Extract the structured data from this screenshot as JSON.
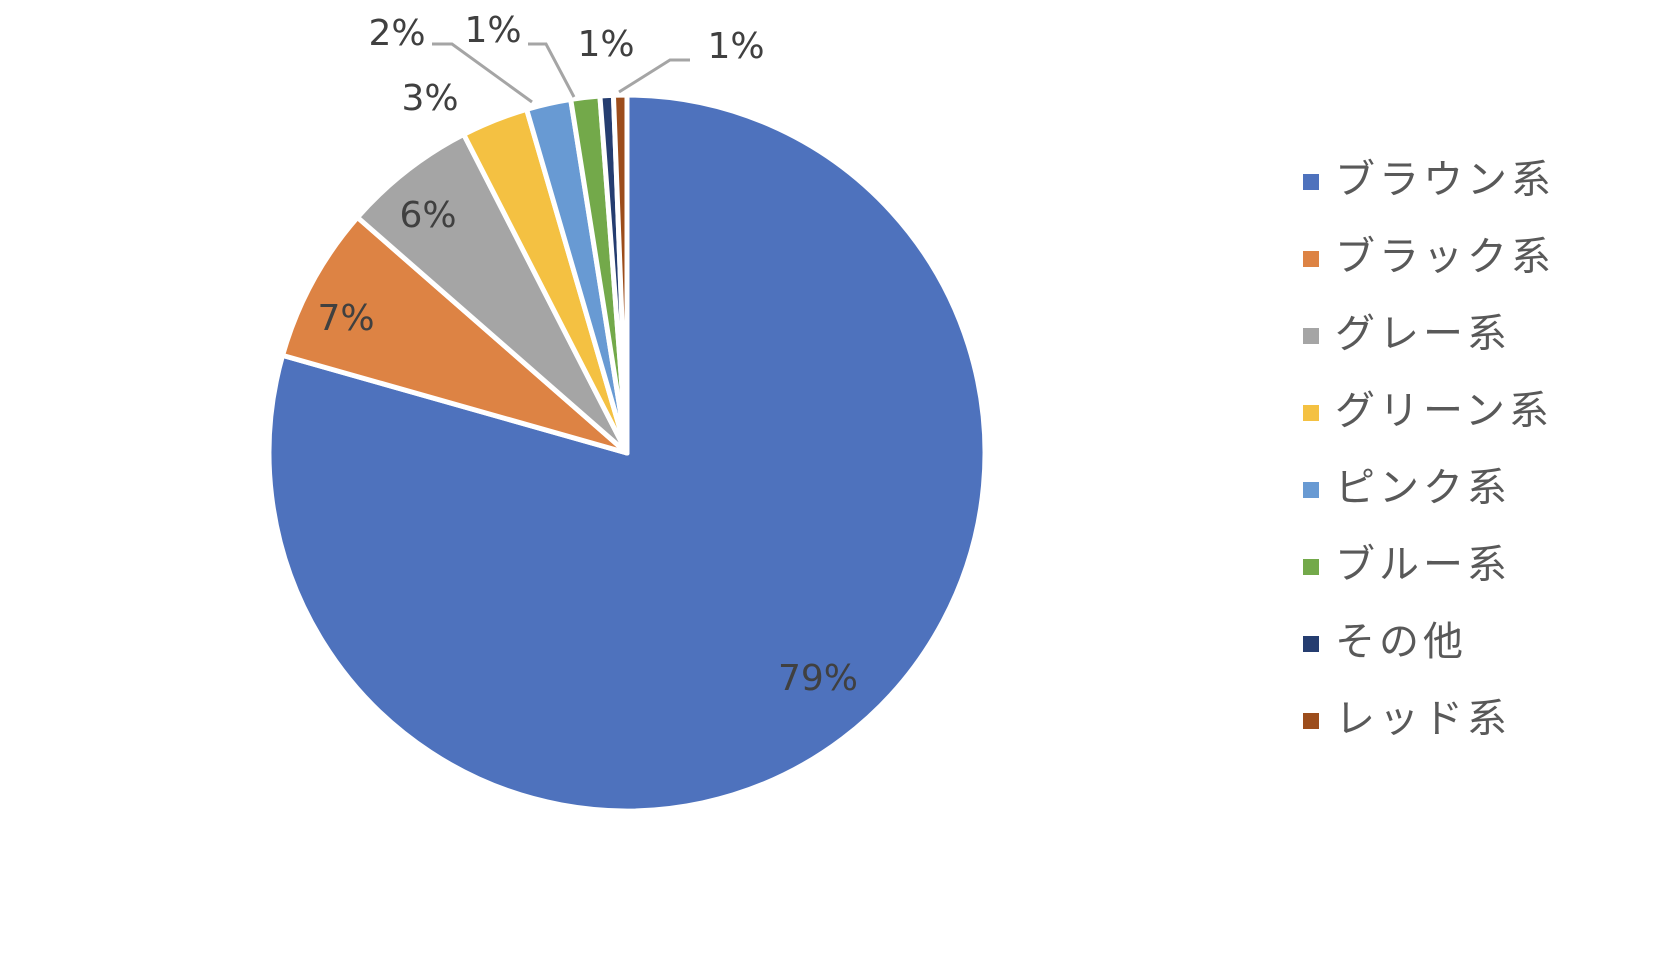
{
  "chart_data": {
    "type": "pie",
    "title": "",
    "start_angle": "12 o'clock",
    "direction": "clockwise",
    "legend_position": "right",
    "slices": [
      {
        "name": "ブラウン系",
        "value": 79,
        "label": "79%",
        "color": "#4E72BD"
      },
      {
        "name": "ブラック系",
        "value": 7,
        "label": "7%",
        "color": "#DD8344"
      },
      {
        "name": "グレー系",
        "value": 6,
        "label": "6%",
        "color": "#A5A5A5"
      },
      {
        "name": "グリーン系",
        "value": 3,
        "label": "3%",
        "color": "#F4C142"
      },
      {
        "name": "ピンク系",
        "value": 2,
        "label": "2%",
        "color": "#689AD3"
      },
      {
        "name": "ブルー系",
        "value": 1.3,
        "label": "1%",
        "color": "#73A94A"
      },
      {
        "name": "その他",
        "value": 0.6,
        "label": "1%",
        "color": "#253D70"
      },
      {
        "name": "レッド系",
        "value": 0.6,
        "label": "1%",
        "color": "#9C4D1C"
      }
    ],
    "label_color": "#404040",
    "leader_line_color": "#A5A5A5"
  }
}
